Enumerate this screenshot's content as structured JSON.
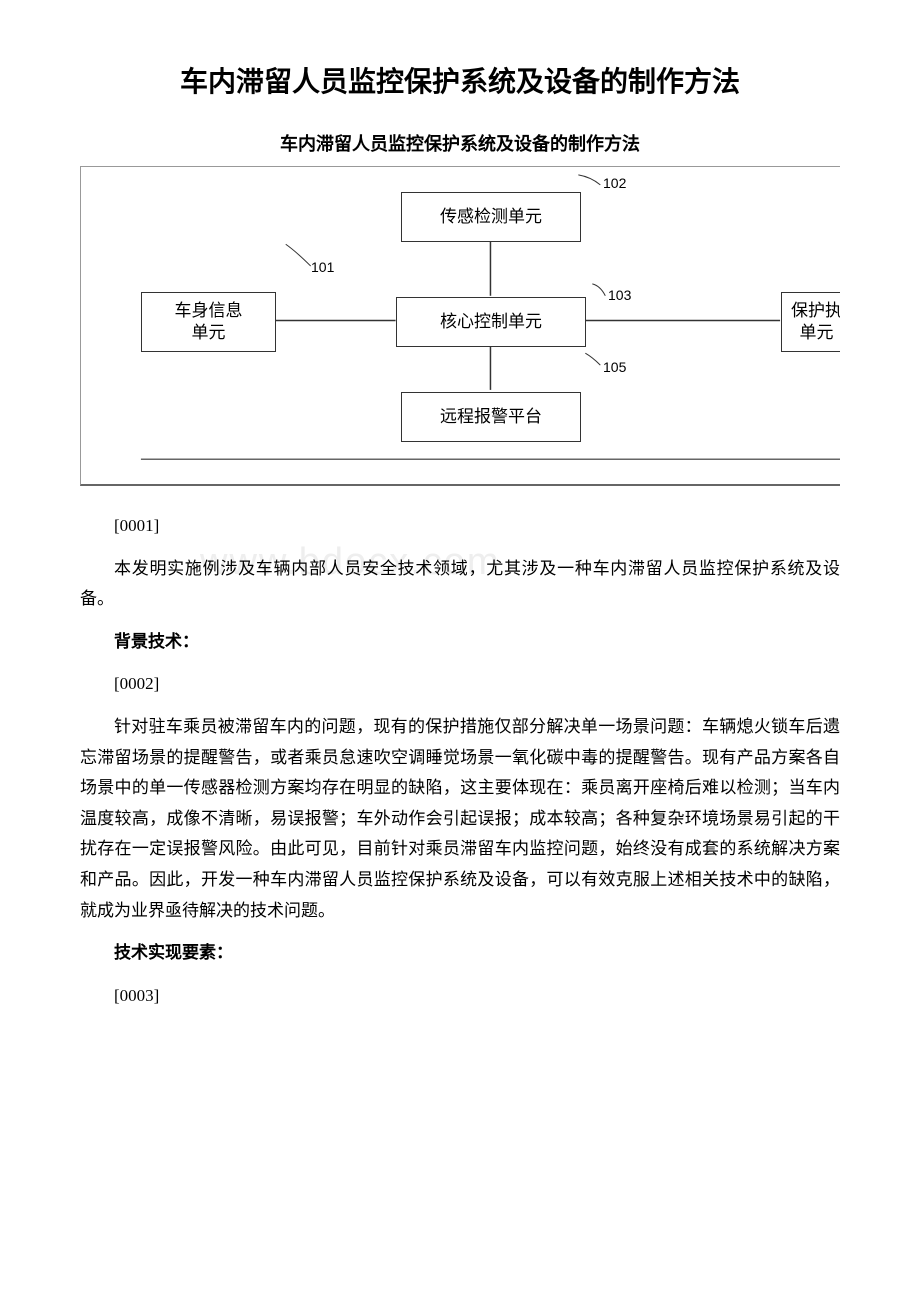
{
  "title": "车内滞留人员监控保护系统及设备的制作方法",
  "subtitle": "车内滞留人员监控保护系统及设备的制作方法",
  "diagram": {
    "boxes": {
      "b101": {
        "label": "车身信息\n单元",
        "num": "101"
      },
      "b102": {
        "label": "传感检测单元",
        "num": "102"
      },
      "b103": {
        "label": "核心控制单元",
        "num": "103"
      },
      "b104": {
        "label": "保护执\n单元",
        "num": ""
      },
      "b105": {
        "label": "远程报警平台",
        "num": "105"
      }
    }
  },
  "watermark": "www.bdocx.com",
  "paragraphs": {
    "p1_num": "[0001]",
    "p1": "本发明实施例涉及车辆内部人员安全技术领域，尤其涉及一种车内滞留人员监控保护系统及设备。",
    "head1": "<b>背景技术：</b>",
    "p2_num": "[0002]",
    "p2": "针对驻车乘员被滞留车内的问题，现有的保护措施仅部分解决单一场景问题：车辆熄火锁车后遗忘滞留场景的提醒警告，或者乘员怠速吹空调睡觉场景一氧化碳中毒的提醒警告。现有产品方案各自场景中的单一传感器检测方案均存在明显的缺陷，这主要体现在：乘员离开座椅后难以检测；当车内温度较高，成像不清晰，易误报警；车外动作会引起误报；成本较高；各种复杂环境场景易引起的干扰存在一定误报警风险。由此可见，目前针对乘员滞留车内监控问题，始终没有成套的系统解决方案和产品。因此，开发一种车内滞留人员监控保护系统及设备，可以有效克服上述相关技术中的缺陷，就成为业界亟待解决的技术问题。",
    "head2": "<b>技术实现要素：</b>",
    "p3_num": "[0003]"
  }
}
